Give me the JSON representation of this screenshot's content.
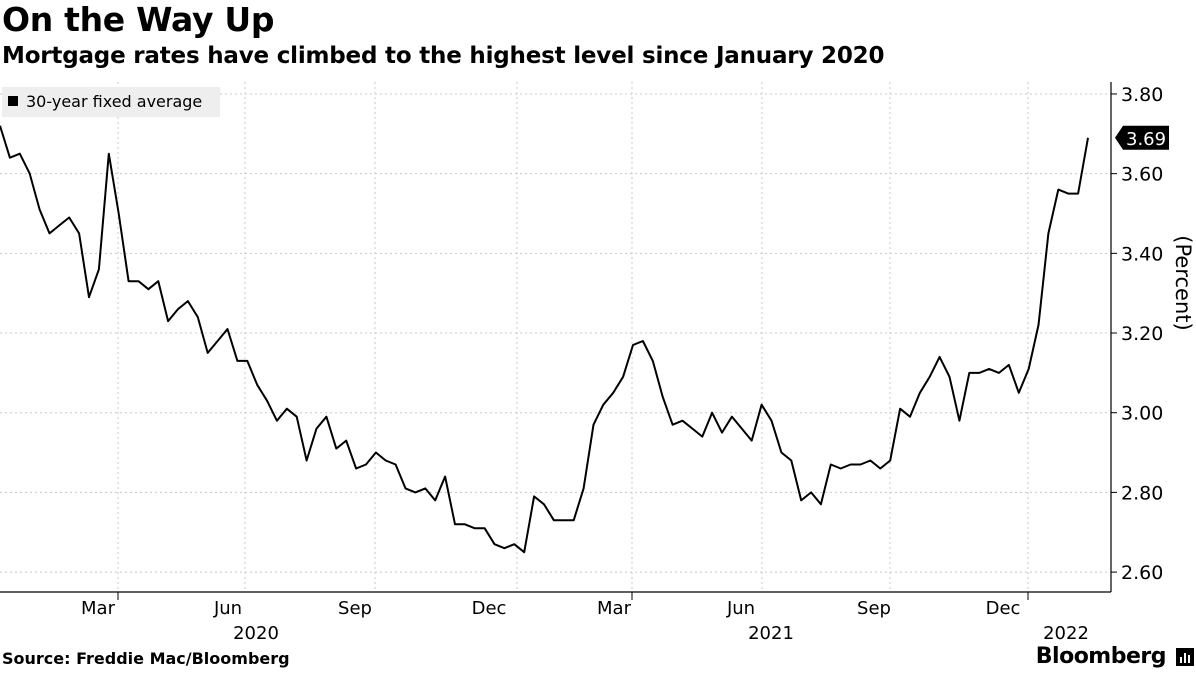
{
  "header": {
    "title": "On the Way Up",
    "subtitle": "Mortgage rates have climbed to the highest level since January 2020"
  },
  "footer": {
    "source": "Source: Freddie Mac/Bloomberg",
    "brand": "Bloomberg"
  },
  "colors": {
    "line": "#000000",
    "grid": "#c8c8c8",
    "legend_bg": "#eeeeee",
    "last_value_bg": "#000000"
  },
  "icons": [
    "legend-swatch-icon",
    "bloomberg-logo-icon"
  ],
  "chart_data": {
    "type": "line",
    "title": "On the Way Up",
    "subtitle": "Mortgage rates have climbed to the highest level since January 2020",
    "ylabel": "(Percent)",
    "ylim": [
      2.55,
      3.83
    ],
    "yticks": [
      2.6,
      2.8,
      3.0,
      3.2,
      3.4,
      3.6,
      3.8
    ],
    "ytick_labels": [
      "2.60",
      "2.80",
      "3.00",
      "3.20",
      "3.40",
      "3.60",
      "3.80"
    ],
    "x_tick_labels": [
      "Mar",
      "Jun",
      "Sep",
      "Dec",
      "Mar",
      "Jun",
      "Sep",
      "Dec"
    ],
    "year_labels": [
      "2020",
      "2021",
      "2022"
    ],
    "grid": true,
    "legend_position": "top-left",
    "last_value_label": "3.69",
    "series": [
      {
        "name": "30-year fixed average",
        "values": [
          3.72,
          3.64,
          3.65,
          3.6,
          3.51,
          3.45,
          3.47,
          3.49,
          3.45,
          3.29,
          3.36,
          3.65,
          3.5,
          3.33,
          3.33,
          3.31,
          3.33,
          3.23,
          3.26,
          3.28,
          3.24,
          3.15,
          3.18,
          3.21,
          3.13,
          3.13,
          3.07,
          3.03,
          2.98,
          3.01,
          2.99,
          2.88,
          2.96,
          2.99,
          2.91,
          2.93,
          2.86,
          2.87,
          2.9,
          2.88,
          2.87,
          2.81,
          2.8,
          2.81,
          2.78,
          2.84,
          2.72,
          2.72,
          2.71,
          2.71,
          2.67,
          2.66,
          2.67,
          2.65,
          2.79,
          2.77,
          2.73,
          2.73,
          2.73,
          2.81,
          2.97,
          3.02,
          3.05,
          3.09,
          3.17,
          3.18,
          3.13,
          3.04,
          2.97,
          2.98,
          2.96,
          2.94,
          3.0,
          2.95,
          2.99,
          2.96,
          2.93,
          3.02,
          2.98,
          2.9,
          2.88,
          2.78,
          2.8,
          2.77,
          2.87,
          2.86,
          2.87,
          2.87,
          2.88,
          2.86,
          2.88,
          3.01,
          2.99,
          3.05,
          3.09,
          3.14,
          3.09,
          2.98,
          3.1,
          3.1,
          3.11,
          3.1,
          3.12,
          3.05,
          3.11,
          3.22,
          3.45,
          3.56,
          3.55,
          3.55,
          3.69
        ]
      }
    ]
  }
}
